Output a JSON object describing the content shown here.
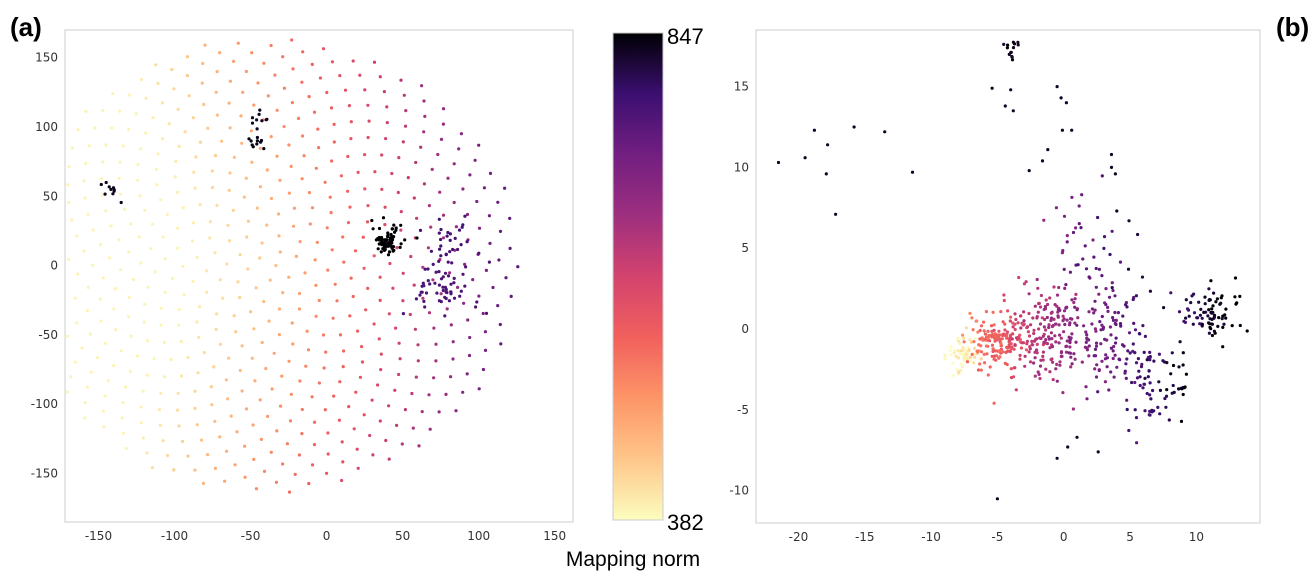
{
  "panel_labels": {
    "a": "(a)",
    "b": "(b)"
  },
  "colorbar": {
    "max_label": "847",
    "min_label": "382",
    "title": "Mapping norm",
    "colormap": "magma"
  },
  "chart_data": [
    {
      "type": "scatter",
      "panel": "(a)",
      "title": "",
      "xlabel": "",
      "ylabel": "",
      "xlim": [
        -172,
        162
      ],
      "ylim": [
        -185,
        170
      ],
      "xticks": [
        -150,
        -100,
        -50,
        0,
        50,
        100,
        150
      ],
      "yticks": [
        -150,
        -100,
        -50,
        0,
        50,
        100,
        150
      ],
      "grid": false,
      "color_by": "Mapping norm",
      "color_range": [
        382,
        847
      ],
      "description_of_structure": "phyllotaxis-like spiral disc centered near (-38, 0), radius about 165, color increasing away from center-left toward the right; dense dark clusters",
      "spiral": {
        "center": [
          -38,
          0
        ],
        "radius": 165,
        "count": 620
      },
      "clusters": [
        {
          "center": [
            40,
            18
          ],
          "spread": 5,
          "count": 70,
          "norm": 847
        },
        {
          "center": [
            75,
            -15
          ],
          "spread": 13,
          "count": 60,
          "norm": 770
        },
        {
          "center": [
            82,
            22
          ],
          "spread": 9,
          "count": 22,
          "norm": 780
        },
        {
          "center": [
            -45,
            105
          ],
          "spread": 4,
          "count": 9,
          "norm": 830
        },
        {
          "center": [
            -45,
            88
          ],
          "spread": 3,
          "count": 10,
          "norm": 840
        },
        {
          "center": [
            -142,
            55
          ],
          "spread": 4,
          "count": 10,
          "norm": 835
        }
      ]
    },
    {
      "type": "scatter",
      "panel": "(b)",
      "title": "",
      "xlabel": "",
      "ylabel": "",
      "xlim": [
        -23.2,
        14.8
      ],
      "ylim": [
        -12,
        18.5
      ],
      "xticks": [
        -20,
        -15,
        -10,
        -5,
        0,
        5,
        10
      ],
      "yticks": [
        -10,
        -5,
        0,
        5,
        10,
        15
      ],
      "grid": false,
      "color_by": "Mapping norm",
      "color_range": [
        382,
        847
      ],
      "clusters": [
        {
          "center": [
            -7.5,
            -1.5
          ],
          "spread": 0.6,
          "count": 60,
          "norm": 400
        },
        {
          "center": [
            -5,
            -0.8
          ],
          "spread": 1.1,
          "count": 140,
          "norm": 560
        },
        {
          "center": [
            -1.5,
            -0.2
          ],
          "spread": 1.6,
          "count": 180,
          "norm": 660
        },
        {
          "center": [
            3,
            -0.5
          ],
          "spread": 2.0,
          "count": 140,
          "norm": 730
        },
        {
          "center": [
            7,
            -3.8
          ],
          "spread": 1.3,
          "count": 70,
          "norm": 800
        },
        {
          "center": [
            11,
            1.0
          ],
          "spread": 1.0,
          "count": 80,
          "norm": 830
        },
        {
          "center": [
            2,
            5
          ],
          "spread": 1.8,
          "count": 40,
          "norm": 760
        },
        {
          "center": [
            -3.8,
            17.3
          ],
          "spread": 0.35,
          "count": 14,
          "norm": 840
        }
      ],
      "scattered_points": [
        [
          -21.5,
          10.3
        ],
        [
          -19.5,
          10.6
        ],
        [
          -18.8,
          12.3
        ],
        [
          -17.8,
          11.4
        ],
        [
          -17.9,
          9.6
        ],
        [
          -17.2,
          7.1
        ],
        [
          -15.8,
          12.5
        ],
        [
          -13.5,
          12.2
        ],
        [
          -11.4,
          9.7
        ],
        [
          -5.4,
          14.9
        ],
        [
          -4.4,
          13.8
        ],
        [
          -3.8,
          13.5
        ],
        [
          -4.0,
          14.8
        ],
        [
          -0.5,
          15.0
        ],
        [
          -0.2,
          14.3
        ],
        [
          0.2,
          14.0
        ],
        [
          -0.1,
          12.3
        ],
        [
          0.6,
          12.3
        ],
        [
          -1.2,
          11.1
        ],
        [
          -2.6,
          9.8
        ],
        [
          -1.6,
          10.4
        ],
        [
          3.6,
          10.8
        ],
        [
          3.6,
          10.0
        ],
        [
          3.9,
          9.6
        ],
        [
          4.0,
          7.3
        ],
        [
          -5.0,
          -10.5
        ],
        [
          -0.5,
          -8.0
        ],
        [
          0.3,
          -7.3
        ],
        [
          2.6,
          -7.6
        ],
        [
          1.0,
          -6.7
        ]
      ]
    }
  ]
}
